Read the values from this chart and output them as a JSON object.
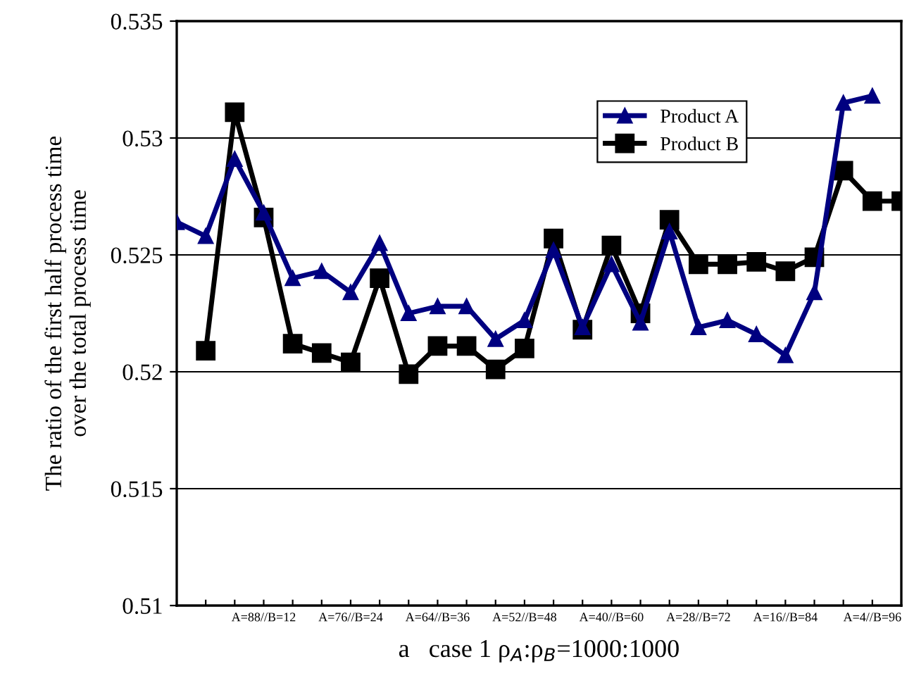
{
  "chart_data": {
    "type": "line",
    "xlabel": "a   case 1 ρ$_{A}$:ρ$_{B}$=1000:1000",
    "ylabel": "The ratio of the first half process time\nover the total process time",
    "categories": [
      null,
      null,
      null,
      "A=88//B=12",
      null,
      null,
      "A=76//B=24",
      null,
      null,
      "A=64//B=36",
      null,
      null,
      "A=52//B=48",
      null,
      null,
      "A=40//B=60",
      null,
      null,
      "A=28//B=72",
      null,
      null,
      "A=16//B=84",
      null,
      null,
      "A=4//B=96",
      null
    ],
    "series": [
      {
        "name": "Product A",
        "color": "#000080",
        "marker": "triangle",
        "values": [
          0.5264,
          0.5258,
          0.5291,
          0.5268,
          0.524,
          0.5243,
          0.5234,
          0.5255,
          0.5225,
          0.5228,
          0.5228,
          0.5214,
          0.5222,
          0.5252,
          0.5219,
          0.5246,
          0.5221,
          0.526,
          0.5219,
          0.5222,
          0.5216,
          0.5207,
          0.5234,
          0.5315,
          0.5318,
          null
        ]
      },
      {
        "name": "Product B",
        "color": "#000000",
        "marker": "square",
        "values": [
          null,
          0.5209,
          0.5311,
          0.5266,
          0.5212,
          0.5208,
          0.5204,
          0.524,
          0.5199,
          0.5211,
          0.5211,
          0.5201,
          0.521,
          0.5257,
          0.5218,
          0.5254,
          0.5225,
          0.5265,
          0.5246,
          0.5246,
          0.5247,
          0.5243,
          0.5249,
          0.5286,
          0.5273,
          0.5273
        ]
      }
    ],
    "ylim": [
      0.51,
      0.535
    ],
    "yticks": [
      0.51,
      0.515,
      0.52,
      0.525,
      0.53,
      0.535
    ],
    "grid": "y",
    "legend": "top right",
    "line_style": "solid"
  }
}
